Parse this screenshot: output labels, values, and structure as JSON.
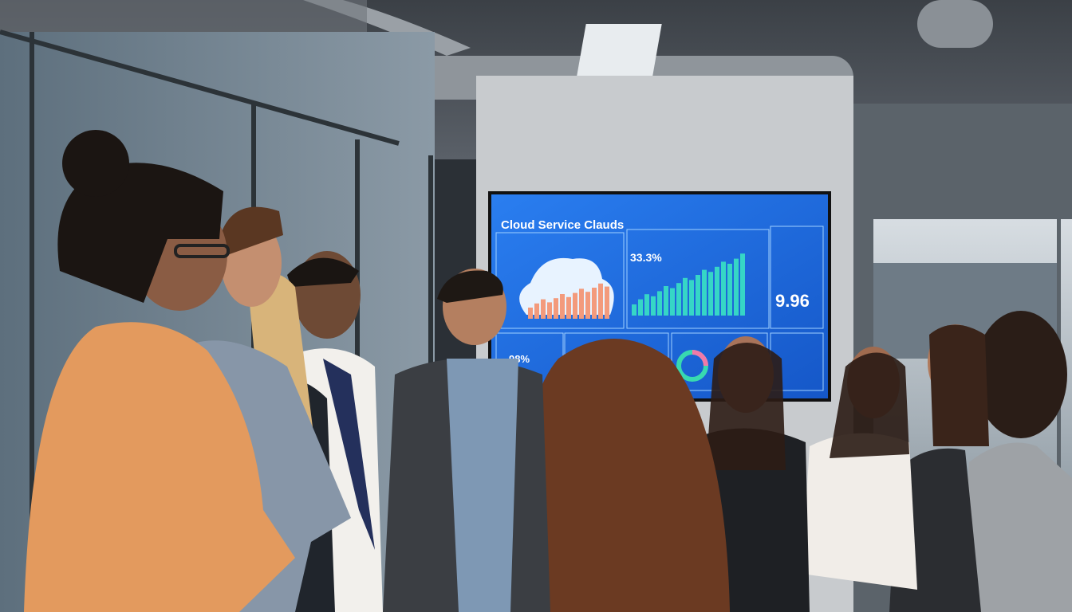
{
  "screen": {
    "title": "Cloud Service Clauds",
    "stats": [
      "33.3%",
      "9.96",
      "98%"
    ]
  }
}
